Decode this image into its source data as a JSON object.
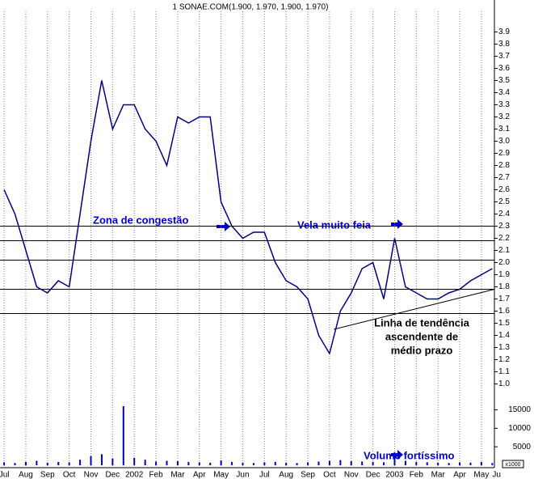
{
  "chart_data": {
    "type": "line",
    "title": "1 SONAE.COM(1.900, 1.970, 1.900, 1.970)",
    "x": [
      0,
      0.5,
      1,
      1.5,
      2,
      2.5,
      3,
      3.5,
      4,
      4.5,
      5,
      5.5,
      6,
      6.5,
      7,
      7.5,
      8,
      8.5,
      9,
      9.5,
      10,
      10.5,
      11,
      11.5,
      12,
      12.5,
      13,
      13.5,
      14,
      14.5,
      15,
      15.5,
      16,
      16.5,
      17,
      17.5,
      18,
      18.5,
      19,
      19.5,
      20,
      20.5,
      21,
      21.5,
      22,
      22.5
    ],
    "series": [
      {
        "color": "#00008b",
        "values": [
          2.6,
          2.4,
          2.1,
          1.8,
          1.75,
          1.85,
          1.8,
          2.4,
          3.0,
          3.5,
          3.1,
          3.3,
          3.3,
          3.1,
          3.0,
          2.8,
          3.2,
          3.15,
          3.2,
          3.2,
          2.5,
          2.3,
          2.2,
          2.25,
          2.25,
          2.0,
          1.85,
          1.8,
          1.7,
          1.4,
          1.25,
          1.6,
          1.75,
          1.95,
          2.0,
          1.7,
          2.2,
          1.8,
          1.75,
          1.7,
          1.7,
          1.75,
          1.78,
          1.85,
          1.9,
          1.95
        ]
      }
    ],
    "volume": {
      "color": "#0000cc",
      "values": [
        800,
        600,
        900,
        1200,
        700,
        900,
        800,
        1500,
        2500,
        3000,
        1800,
        16000,
        2000,
        1500,
        1000,
        1200,
        1100,
        900,
        800,
        700,
        1300,
        900,
        700,
        600,
        800,
        900,
        700,
        600,
        800,
        1000,
        1200,
        1400,
        1100,
        1000,
        900,
        800,
        3500,
        1200,
        900,
        800,
        700,
        600,
        800,
        700,
        900,
        600
      ],
      "ylim": [
        0,
        23000
      ],
      "yticks": [
        5000,
        10000,
        15000
      ],
      "unit": "x1000"
    },
    "xlim": [
      -0.19,
      22.6
    ],
    "xticks": [
      {
        "value": 0,
        "label": "Jul"
      },
      {
        "value": 1,
        "label": "Aug"
      },
      {
        "value": 2,
        "label": "Sep"
      },
      {
        "value": 3,
        "label": "Oct"
      },
      {
        "value": 4,
        "label": "Nov"
      },
      {
        "value": 5,
        "label": "Dec"
      },
      {
        "value": 6,
        "label": "2002"
      },
      {
        "value": 7,
        "label": "Feb"
      },
      {
        "value": 8,
        "label": "Mar"
      },
      {
        "value": 9,
        "label": "Apr"
      },
      {
        "value": 10,
        "label": "May"
      },
      {
        "value": 11,
        "label": "Jun"
      },
      {
        "value": 12,
        "label": "Jul"
      },
      {
        "value": 13,
        "label": "Aug"
      },
      {
        "value": 14,
        "label": "Sep"
      },
      {
        "value": 15,
        "label": "Oct"
      },
      {
        "value": 16,
        "label": "Nov"
      },
      {
        "value": 17,
        "label": "Dec"
      },
      {
        "value": 18,
        "label": "2003"
      },
      {
        "value": 19,
        "label": "Feb"
      },
      {
        "value": 20,
        "label": "Mar"
      },
      {
        "value": 21,
        "label": "Apr"
      },
      {
        "value": 22,
        "label": "May"
      },
      {
        "value": 22.7,
        "label": "Ju"
      }
    ],
    "ylim": [
      0.97,
      4.05
    ],
    "yticks": [
      {
        "value": 1.0,
        "label": "1.0"
      },
      1.1,
      1.2,
      1.3,
      1.4,
      1.5,
      1.6,
      1.7,
      1.8,
      1.9,
      {
        "value": 2.0,
        "label": "2.0"
      },
      2.1,
      2.2,
      2.3,
      2.4,
      2.5,
      2.6,
      2.7,
      2.8,
      2.9,
      {
        "value": 3.0,
        "label": "3.0"
      },
      3.1,
      3.2,
      3.3,
      3.4,
      3.5,
      3.6,
      3.7,
      3.8,
      3.9
    ],
    "grid": true,
    "levels": [
      2.3,
      2.18,
      2.02,
      1.78,
      1.58
    ],
    "trendline": {
      "x": [
        15.2,
        22.6
      ],
      "y": [
        1.45,
        1.78
      ]
    },
    "annotations": [
      "Zona de congestão",
      "Vela muito feia",
      "Linha de tendência",
      "ascendente de",
      "médio prazo",
      "Volume fortíssimo"
    ]
  }
}
